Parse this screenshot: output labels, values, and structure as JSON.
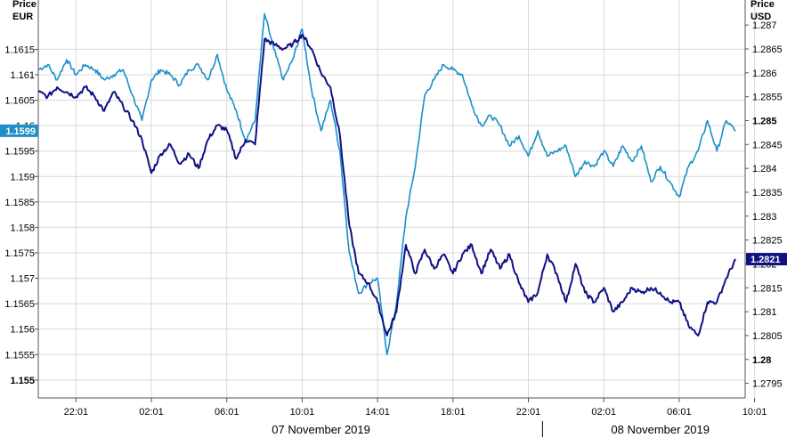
{
  "chart_data": {
    "type": "line",
    "left_axis": {
      "title_line1": "Price",
      "title_line2": "EUR",
      "ticks": [
        "1.1615",
        "1.161",
        "1.1605",
        "1.16",
        "1.1595",
        "1.159",
        "1.1585",
        "1.158",
        "1.1575",
        "1.157",
        "1.1565",
        "1.156",
        "1.1555",
        "1.155"
      ],
      "bold_ticks": [
        "1.155"
      ],
      "ylim": [
        1.1547,
        1.1624
      ],
      "current_marker": {
        "label": "1.1599",
        "value": 1.1599,
        "color": "#1f8fc8"
      }
    },
    "right_axis": {
      "title_line1": "Price",
      "title_line2": "USD",
      "ticks": [
        "1.287",
        "1.2865",
        "1.286",
        "1.2855",
        "1.285",
        "1.2845",
        "1.284",
        "1.2835",
        "1.283",
        "1.2825",
        "1.282",
        "1.2815",
        "1.281",
        "1.2805",
        "1.28",
        "1.2795"
      ],
      "bold_ticks": [
        "1.285",
        "1.28"
      ],
      "ylim": [
        1.27925,
        1.28745
      ],
      "current_marker": {
        "label": "1.2821",
        "value": 1.2821,
        "color": "#101085"
      }
    },
    "x_axis": {
      "ticks": [
        "22:01",
        "02:01",
        "06:01",
        "10:01",
        "14:01",
        "18:01",
        "22:01",
        "02:01",
        "06:01",
        "10:01"
      ],
      "dates": [
        "07 November 2019",
        "08 November 2019"
      ],
      "xlim": [
        0,
        37.5
      ]
    },
    "grid": true,
    "series": [
      {
        "axis": "left",
        "color": "#1a90c8",
        "x": [
          0,
          0.5,
          1,
          1.5,
          2,
          2.5,
          3,
          3.5,
          4,
          4.5,
          5,
          5.5,
          6,
          6.5,
          7,
          7.5,
          8,
          8.5,
          9,
          9.5,
          10,
          10.5,
          11,
          11.5,
          12,
          12.5,
          13,
          13.5,
          14,
          14.5,
          15,
          15.5,
          16,
          16.5,
          17,
          17.5,
          18,
          18.5,
          19,
          19.5,
          20,
          20.5,
          21,
          21.5,
          22,
          22.5,
          23,
          23.5,
          24,
          24.5,
          25,
          25.5,
          26,
          26.5,
          27,
          27.5,
          28,
          28.5,
          29,
          29.5,
          30,
          30.5,
          31,
          31.5,
          32,
          32.5,
          33,
          33.5,
          34,
          34.5,
          35,
          35.5,
          36,
          36.5,
          37
        ],
        "y": [
          1.1611,
          1.1612,
          1.1609,
          1.1613,
          1.161,
          1.1612,
          1.1611,
          1.1609,
          1.161,
          1.1611,
          1.1606,
          1.1601,
          1.1609,
          1.1611,
          1.161,
          1.1608,
          1.1611,
          1.1612,
          1.1609,
          1.1614,
          1.1607,
          1.1603,
          1.1597,
          1.1601,
          1.1622,
          1.1615,
          1.1609,
          1.1613,
          1.1619,
          1.1607,
          1.1599,
          1.1605,
          1.1595,
          1.1575,
          1.1567,
          1.1569,
          1.157,
          1.1555,
          1.1565,
          1.1582,
          1.1592,
          1.1606,
          1.1609,
          1.1612,
          1.1611,
          1.161,
          1.1604,
          1.16,
          1.1602,
          1.16,
          1.1596,
          1.1598,
          1.1594,
          1.1599,
          1.1594,
          1.1595,
          1.1596,
          1.159,
          1.1593,
          1.1592,
          1.1595,
          1.1592,
          1.1596,
          1.1593,
          1.1596,
          1.1589,
          1.1592,
          1.1589,
          1.1586,
          1.1592,
          1.1595,
          1.1601,
          1.1595,
          1.1601,
          1.1599
        ]
      },
      {
        "axis": "right",
        "color": "#101085",
        "x": [
          0,
          0.5,
          1,
          1.5,
          2,
          2.5,
          3,
          3.5,
          4,
          4.5,
          5,
          5.5,
          6,
          6.5,
          7,
          7.5,
          8,
          8.5,
          9,
          9.5,
          10,
          10.5,
          11,
          11.5,
          12,
          12.5,
          13,
          13.5,
          14,
          14.5,
          15,
          15.5,
          16,
          16.5,
          17,
          17.5,
          18,
          18.5,
          19,
          19.5,
          20,
          20.5,
          21,
          21.5,
          22,
          22.5,
          23,
          23.5,
          24,
          24.5,
          25,
          25.5,
          26,
          26.5,
          27,
          27.5,
          28,
          28.5,
          29,
          29.5,
          30,
          30.5,
          31,
          31.5,
          32,
          32.5,
          33,
          33.5,
          34,
          34.5,
          35,
          35.5,
          36,
          36.5,
          37
        ],
        "y": [
          1.2856,
          1.2855,
          1.2857,
          1.2856,
          1.2855,
          1.2857,
          1.2855,
          1.2852,
          1.2856,
          1.2853,
          1.285,
          1.2846,
          1.2839,
          1.2843,
          1.2845,
          1.2841,
          1.2843,
          1.284,
          1.2846,
          1.2849,
          1.2848,
          1.2842,
          1.2846,
          1.2845,
          1.2867,
          1.2866,
          1.2865,
          1.2866,
          1.2868,
          1.2865,
          1.286,
          1.2857,
          1.2847,
          1.2828,
          1.2818,
          1.2816,
          1.2812,
          1.2805,
          1.281,
          1.2824,
          1.2818,
          1.2823,
          1.2819,
          1.2822,
          1.2818,
          1.2822,
          1.2824,
          1.2818,
          1.2823,
          1.2819,
          1.2822,
          1.2816,
          1.2812,
          1.2814,
          1.2822,
          1.2818,
          1.2812,
          1.282,
          1.2814,
          1.2812,
          1.2815,
          1.281,
          1.2812,
          1.2815,
          1.2814,
          1.2815,
          1.2814,
          1.2812,
          1.2812,
          1.2807,
          1.2805,
          1.2812,
          1.2812,
          1.2817,
          1.2821
        ]
      }
    ]
  }
}
